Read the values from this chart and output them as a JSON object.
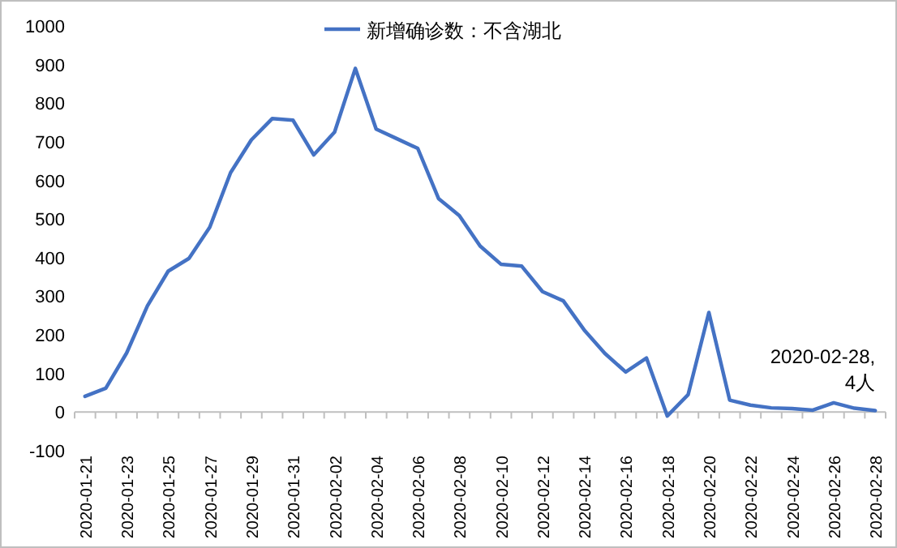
{
  "chart_data": {
    "type": "line",
    "categories": [
      "2020-01-21",
      null,
      "2020-01-23",
      null,
      "2020-01-25",
      null,
      "2020-01-27",
      null,
      "2020-01-29",
      null,
      "2020-01-31",
      null,
      "2020-02-02",
      null,
      "2020-02-04",
      null,
      "2020-02-06",
      null,
      "2020-02-08",
      null,
      "2020-02-10",
      null,
      "2020-02-12",
      null,
      "2020-02-14",
      null,
      "2020-02-16",
      null,
      "2020-02-18",
      null,
      "2020-02-20",
      null,
      "2020-02-22",
      null,
      "2020-02-24",
      null,
      "2020-02-26",
      null,
      "2020-02-28"
    ],
    "series": [
      {
        "name": "新增确诊数：不含湖北",
        "color": "#4472c4",
        "values": [
          41,
          62,
          153,
          275,
          365,
          398,
          479,
          620,
          705,
          760,
          756,
          666,
          725,
          890,
          733,
          708,
          683,
          553,
          509,
          430,
          383,
          378,
          312,
          288,
          213,
          152,
          104,
          140,
          -10,
          45,
          258,
          31,
          18,
          11,
          9,
          5,
          24,
          10,
          4
        ]
      }
    ],
    "ylim": [
      -100,
      1000
    ],
    "yticks": [
      -100,
      0,
      100,
      200,
      300,
      400,
      500,
      600,
      700,
      800,
      900,
      1000
    ],
    "annotations": [
      {
        "text": "2020-02-28,\n4人",
        "x": "2020-02-28",
        "y": 4
      }
    ],
    "legend": "top",
    "marker": "none",
    "line_style": "solid"
  }
}
